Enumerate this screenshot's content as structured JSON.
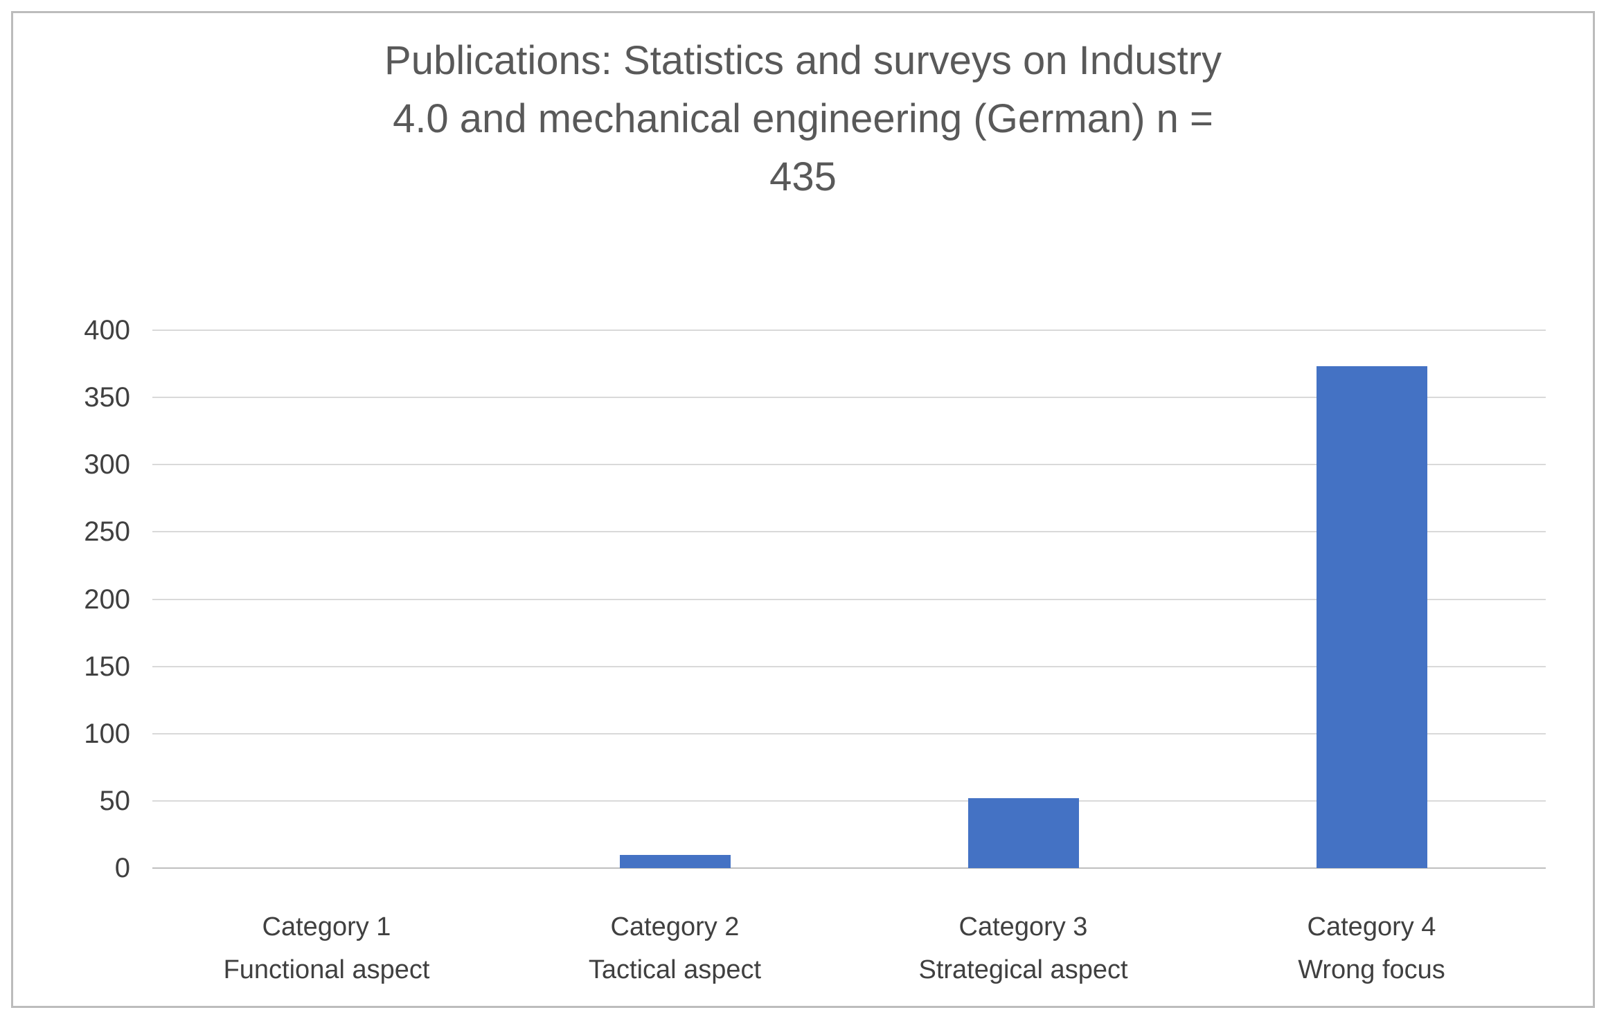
{
  "chart_data": {
    "type": "bar",
    "title": "Publications: Statistics and surveys on Industry 4.0 and mechanical engineering (German) n = 435",
    "title_lines": [
      "Publications: Statistics and surveys on Industry",
      "4.0 and mechanical engineering (German) n =",
      "435"
    ],
    "categories": [
      "Category 1",
      "Category 2",
      "Category 3",
      "Category 4"
    ],
    "category_sublabels": [
      "Functional aspect",
      "Tactical aspect",
      "Strategical aspect",
      "Wrong focus"
    ],
    "values": [
      0,
      10,
      52,
      373
    ],
    "total_n": 435,
    "xlabel": "",
    "ylabel": "",
    "ylim": [
      0,
      400
    ],
    "yticks": [
      0,
      50,
      100,
      150,
      200,
      250,
      300,
      350,
      400
    ],
    "grid": true,
    "legend_position": "none",
    "colors": {
      "bar": "#4472c4",
      "gridline": "#d9d9d9",
      "axis_line": "#bfbfbf",
      "title_text": "#595959",
      "axis_text": "#404040",
      "frame_border": "#bcbcbc",
      "background": "#ffffff"
    }
  }
}
